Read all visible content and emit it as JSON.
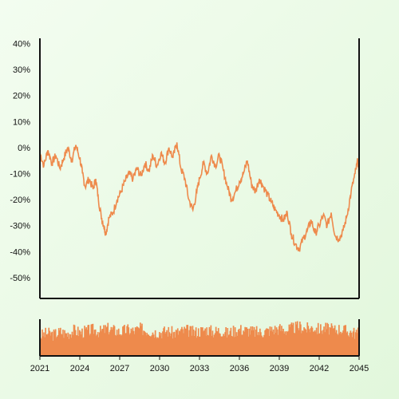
{
  "chart_data": {
    "type": "line",
    "title": "",
    "xlabel": "",
    "ylabel": "",
    "xlim": [
      2021,
      2045
    ],
    "ylim": [
      -58,
      42
    ],
    "yticks": [
      40,
      30,
      20,
      10,
      0,
      -10,
      -20,
      -30,
      -40,
      -50
    ],
    "ytick_labels": [
      "40%",
      "30%",
      "20%",
      "10%",
      "0%",
      "-10%",
      "-20%",
      "-30%",
      "-40%",
      "-50%"
    ],
    "xticks": [
      2021,
      2024,
      2027,
      2030,
      2033,
      2036,
      2039,
      2042,
      2045
    ],
    "xtick_labels": [
      "2021",
      "2024",
      "2027",
      "2030",
      "2033",
      "2036",
      "2039",
      "2042",
      "2045"
    ],
    "grid": false,
    "line_color": "#ee8a4c",
    "bar_color": "#ee8a4c",
    "series": [
      {
        "x": [
          2021.0,
          2021.3,
          2021.6,
          2021.9,
          2022.2,
          2022.5,
          2022.8,
          2023.1,
          2023.4,
          2023.7,
          2024.0,
          2024.2,
          2024.4,
          2024.7,
          2025.0,
          2025.2,
          2025.4,
          2025.6,
          2025.8,
          2025.95,
          2026.2,
          2026.5,
          2026.8,
          2027.1,
          2027.4,
          2027.7,
          2028.0,
          2028.3,
          2028.6,
          2028.9,
          2029.2,
          2029.5,
          2029.8,
          2030.1,
          2030.4,
          2030.7,
          2031.0,
          2031.3,
          2031.6,
          2031.9,
          2032.2,
          2032.5,
          2032.8,
          2033.0,
          2033.3,
          2033.6,
          2033.9,
          2034.2,
          2034.5,
          2034.8,
          2035.1,
          2035.4,
          2035.7,
          2036.0,
          2036.3,
          2036.6,
          2036.9,
          2037.2,
          2037.5,
          2037.8,
          2038.1,
          2038.4,
          2038.7,
          2039.0,
          2039.3,
          2039.6,
          2039.9,
          2040.2,
          2040.5,
          2040.8,
          2041.1,
          2041.4,
          2041.7,
          2042.0,
          2042.3,
          2042.6,
          2042.9,
          2043.2,
          2043.5,
          2043.8,
          2044.1,
          2044.4,
          2044.7,
          2044.9,
          2045.0
        ],
        "y": [
          -2,
          -7,
          -1,
          -6,
          -3,
          -8,
          -4,
          0,
          -5,
          1,
          -4,
          -10,
          -15,
          -12,
          -16,
          -12,
          -20,
          -26,
          -30,
          -33,
          -27,
          -25,
          -20,
          -17,
          -13,
          -10,
          -12,
          -8,
          -11,
          -6,
          -9,
          -3,
          -7,
          -2,
          -6,
          0,
          -4,
          2,
          -8,
          -12,
          -20,
          -24,
          -17,
          -12,
          -6,
          -10,
          -3,
          -7,
          -3,
          -9,
          -15,
          -20,
          -17,
          -13,
          -10,
          -5,
          -14,
          -17,
          -12,
          -15,
          -18,
          -21,
          -24,
          -26,
          -28,
          -25,
          -33,
          -37,
          -39,
          -35,
          -32,
          -28,
          -33,
          -30,
          -26,
          -30,
          -25,
          -34,
          -35,
          -32,
          -26,
          -17,
          -10,
          -5,
          -10
        ]
      }
    ],
    "volume_bars": {
      "x": [
        2021.0,
        2021.5,
        2022.0,
        2022.5,
        2023.0,
        2023.5,
        2024.0,
        2024.5,
        2025.0,
        2025.5,
        2026.0,
        2026.5,
        2027.0,
        2027.5,
        2028.0,
        2028.5,
        2029.0,
        2029.5,
        2030.0,
        2030.5,
        2031.0,
        2031.5,
        2032.0,
        2032.5,
        2033.0,
        2033.5,
        2034.0,
        2034.5,
        2035.0,
        2035.5,
        2036.0,
        2036.5,
        2037.0,
        2037.5,
        2038.0,
        2038.5,
        2039.0,
        2039.5,
        2040.0,
        2040.5,
        2041.0,
        2041.5,
        2042.0,
        2042.5,
        2043.0,
        2043.5,
        2044.0,
        2044.5,
        2045.0
      ],
      "values": [
        0.55,
        0.62,
        0.58,
        0.66,
        0.6,
        0.7,
        0.64,
        0.68,
        0.72,
        0.66,
        0.75,
        0.7,
        0.65,
        0.72,
        0.68,
        0.74,
        0.7,
        0.66,
        0.64,
        0.68,
        0.62,
        0.66,
        0.7,
        0.64,
        0.68,
        0.72,
        0.66,
        0.7,
        0.62,
        0.68,
        0.72,
        0.7,
        0.66,
        0.64,
        0.68,
        0.72,
        0.74,
        0.7,
        0.76,
        0.8,
        0.74,
        0.78,
        0.72,
        0.76,
        0.7,
        0.74,
        0.68,
        0.64,
        0.6
      ]
    }
  }
}
